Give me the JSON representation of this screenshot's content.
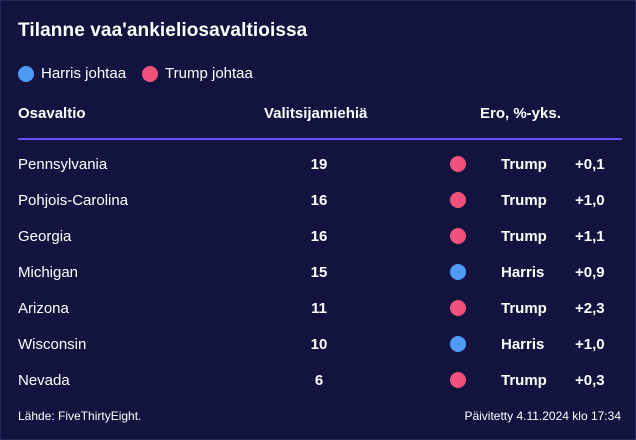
{
  "title": "Tilanne vaa'ankieliosavaltioissa",
  "legend": [
    {
      "label": "Harris johtaa",
      "color": "#4d9bf5"
    },
    {
      "label": "Trump johtaa",
      "color": "#f0517a"
    }
  ],
  "columns": {
    "state": "Osavaltio",
    "electors": "Valitsijamiehiä",
    "margin": "Ero, %-yks."
  },
  "colors": {
    "background": "#13133f",
    "divider": "#6c4cf0",
    "harris": "#4d9bf5",
    "trump": "#f0517a"
  },
  "rows": [
    {
      "state": "Pennsylvania",
      "electors": "19",
      "leader": "Trump",
      "margin": "+0,1"
    },
    {
      "state": "Pohjois-Carolina",
      "electors": "16",
      "leader": "Trump",
      "margin": "+1,0"
    },
    {
      "state": "Georgia",
      "electors": "16",
      "leader": "Trump",
      "margin": "+1,1"
    },
    {
      "state": "Michigan",
      "electors": "15",
      "leader": "Harris",
      "margin": "+0,9"
    },
    {
      "state": "Arizona",
      "electors": "11",
      "leader": "Trump",
      "margin": "+2,3"
    },
    {
      "state": "Wisconsin",
      "electors": "10",
      "leader": "Harris",
      "margin": "+1,0"
    },
    {
      "state": "Nevada",
      "electors": "6",
      "leader": "Trump",
      "margin": "+0,3"
    }
  ],
  "footer": {
    "source": "Lähde: FiveThirtyEight.",
    "updated": "Päivitetty 4.11.2024 klo 17:34"
  }
}
